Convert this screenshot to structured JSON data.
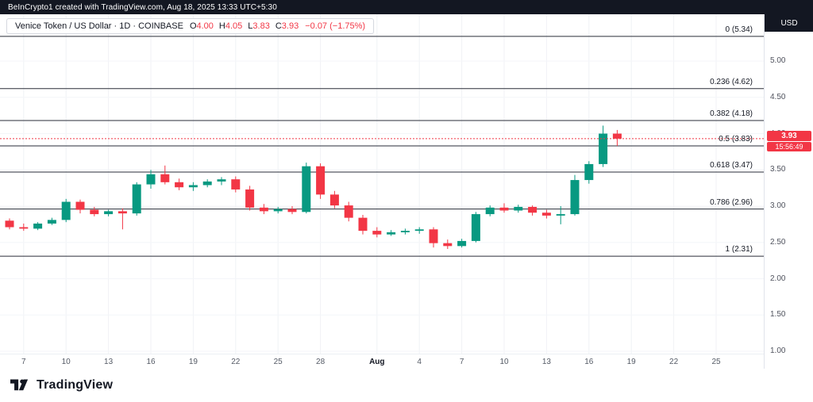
{
  "top_bar": {
    "title": "BeInCrypto1 created with TradingView.com, Aug 18, 2025 13:33 UTC+5:30",
    "currency": "USD"
  },
  "legend": {
    "title": "Venice Token / US Dollar · 1D · COINBASE",
    "ohlc": [
      {
        "label": "O",
        "value": "4.00"
      },
      {
        "label": "H",
        "value": "4.05"
      },
      {
        "label": "L",
        "value": "3.83"
      },
      {
        "label": "C",
        "value": "3.93"
      }
    ],
    "change": "−0.07 (−1.75%)"
  },
  "price_axis": {
    "last_price_badge": {
      "price": "3.93",
      "time": "15:56:49"
    }
  },
  "footer": {
    "brand": "TradingView"
  },
  "colors": {
    "up": "#089981",
    "down": "#f23645",
    "fib_line": "#2a2e39",
    "grid_v": "#f0f2f6",
    "grid_h": "#f4f6f9",
    "last_price_line": "#f23645",
    "topbar_bg": "#131722",
    "axis_text": "#50535e"
  },
  "chart_data": {
    "type": "candlestick",
    "title": "Venice Token / US Dollar, 1D, COINBASE",
    "symbol": "Venice Token / US Dollar",
    "interval": "1D",
    "exchange": "COINBASE",
    "ylim": [
      0.95,
      5.45
    ],
    "last_price": 3.93,
    "last_price_time": "15:56:49",
    "price_ticks": [
      {
        "label": "5.00",
        "value": 5.0
      },
      {
        "label": "4.50",
        "value": 4.5
      },
      {
        "label": "4.00",
        "value": 4.0
      },
      {
        "label": "3.50",
        "value": 3.5
      },
      {
        "label": "3.00",
        "value": 3.0
      },
      {
        "label": "2.50",
        "value": 2.5
      },
      {
        "label": "2.00",
        "value": 2.0
      },
      {
        "label": "1.50",
        "value": 1.5
      },
      {
        "label": "1.00",
        "value": 1.0
      }
    ],
    "time_ticks": [
      {
        "label": "7",
        "day": 1
      },
      {
        "label": "10",
        "day": 4
      },
      {
        "label": "13",
        "day": 7
      },
      {
        "label": "16",
        "day": 10
      },
      {
        "label": "19",
        "day": 13
      },
      {
        "label": "22",
        "day": 16
      },
      {
        "label": "25",
        "day": 19
      },
      {
        "label": "28",
        "day": 22
      },
      {
        "label": "Aug",
        "day": 26,
        "strong": true
      },
      {
        "label": "4",
        "day": 29
      },
      {
        "label": "7",
        "day": 32
      },
      {
        "label": "10",
        "day": 35
      },
      {
        "label": "13",
        "day": 38
      },
      {
        "label": "16",
        "day": 41
      },
      {
        "label": "19",
        "day": 44
      },
      {
        "label": "22",
        "day": 47
      },
      {
        "label": "25",
        "day": 50
      }
    ],
    "fib_levels": [
      {
        "label": "0 (5.34)",
        "ratio": 0,
        "price": 5.34
      },
      {
        "label": "0.236 (4.62)",
        "ratio": 0.236,
        "price": 4.62
      },
      {
        "label": "0.382 (4.18)",
        "ratio": 0.382,
        "price": 4.18
      },
      {
        "label": "0.5 (3.83)",
        "ratio": 0.5,
        "price": 3.83
      },
      {
        "label": "0.618 (3.47)",
        "ratio": 0.618,
        "price": 3.47
      },
      {
        "label": "0.786 (2.96)",
        "ratio": 0.786,
        "price": 2.96
      },
      {
        "label": "1 (2.31)",
        "ratio": 1,
        "price": 2.31
      }
    ],
    "candles": [
      {
        "d": "Jul 6",
        "o": 2.8,
        "h": 2.83,
        "l": 2.68,
        "c": 2.71
      },
      {
        "d": "Jul 7",
        "o": 2.71,
        "h": 2.76,
        "l": 2.66,
        "c": 2.69
      },
      {
        "d": "Jul 8",
        "o": 2.69,
        "h": 2.78,
        "l": 2.67,
        "c": 2.76
      },
      {
        "d": "Jul 9",
        "o": 2.76,
        "h": 2.84,
        "l": 2.74,
        "c": 2.81
      },
      {
        "d": "Jul 10",
        "o": 2.81,
        "h": 3.1,
        "l": 2.78,
        "c": 3.06
      },
      {
        "d": "Jul 11",
        "o": 3.06,
        "h": 3.09,
        "l": 2.9,
        "c": 2.95
      },
      {
        "d": "Jul 12",
        "o": 2.95,
        "h": 2.99,
        "l": 2.86,
        "c": 2.89
      },
      {
        "d": "Jul 13",
        "o": 2.89,
        "h": 2.95,
        "l": 2.86,
        "c": 2.93
      },
      {
        "d": "Jul 14",
        "o": 2.93,
        "h": 2.97,
        "l": 2.68,
        "c": 2.9
      },
      {
        "d": "Jul 15",
        "o": 2.9,
        "h": 3.33,
        "l": 2.87,
        "c": 3.3
      },
      {
        "d": "Jul 16",
        "o": 3.3,
        "h": 3.5,
        "l": 3.24,
        "c": 3.44
      },
      {
        "d": "Jul 17",
        "o": 3.44,
        "h": 3.56,
        "l": 3.3,
        "c": 3.33
      },
      {
        "d": "Jul 18",
        "o": 3.33,
        "h": 3.38,
        "l": 3.22,
        "c": 3.26
      },
      {
        "d": "Jul 19",
        "o": 3.26,
        "h": 3.33,
        "l": 3.21,
        "c": 3.29
      },
      {
        "d": "Jul 20",
        "o": 3.29,
        "h": 3.37,
        "l": 3.26,
        "c": 3.34
      },
      {
        "d": "Jul 21",
        "o": 3.34,
        "h": 3.4,
        "l": 3.29,
        "c": 3.37
      },
      {
        "d": "Jul 22",
        "o": 3.37,
        "h": 3.41,
        "l": 3.19,
        "c": 3.23
      },
      {
        "d": "Jul 23",
        "o": 3.23,
        "h": 3.28,
        "l": 2.94,
        "c": 2.98
      },
      {
        "d": "Jul 24",
        "o": 2.98,
        "h": 3.03,
        "l": 2.89,
        "c": 2.93
      },
      {
        "d": "Jul 25",
        "o": 2.93,
        "h": 2.99,
        "l": 2.9,
        "c": 2.96
      },
      {
        "d": "Jul 26",
        "o": 2.96,
        "h": 3.0,
        "l": 2.89,
        "c": 2.92
      },
      {
        "d": "Jul 27",
        "o": 2.92,
        "h": 3.6,
        "l": 2.9,
        "c": 3.55
      },
      {
        "d": "Jul 28",
        "o": 3.55,
        "h": 3.59,
        "l": 3.1,
        "c": 3.16
      },
      {
        "d": "Jul 29",
        "o": 3.16,
        "h": 3.21,
        "l": 2.97,
        "c": 3.01
      },
      {
        "d": "Jul 30",
        "o": 3.01,
        "h": 3.06,
        "l": 2.79,
        "c": 2.84
      },
      {
        "d": "Jul 31",
        "o": 2.84,
        "h": 2.88,
        "l": 2.61,
        "c": 2.66
      },
      {
        "d": "Aug 1",
        "o": 2.66,
        "h": 2.71,
        "l": 2.57,
        "c": 2.61
      },
      {
        "d": "Aug 2",
        "o": 2.61,
        "h": 2.67,
        "l": 2.59,
        "c": 2.64
      },
      {
        "d": "Aug 3",
        "o": 2.64,
        "h": 2.69,
        "l": 2.61,
        "c": 2.66
      },
      {
        "d": "Aug 4",
        "o": 2.66,
        "h": 2.71,
        "l": 2.62,
        "c": 2.68
      },
      {
        "d": "Aug 5",
        "o": 2.68,
        "h": 2.71,
        "l": 2.43,
        "c": 2.49
      },
      {
        "d": "Aug 6",
        "o": 2.49,
        "h": 2.54,
        "l": 2.41,
        "c": 2.45
      },
      {
        "d": "Aug 7",
        "o": 2.45,
        "h": 2.55,
        "l": 2.43,
        "c": 2.52
      },
      {
        "d": "Aug 8",
        "o": 2.52,
        "h": 2.92,
        "l": 2.5,
        "c": 2.89
      },
      {
        "d": "Aug 9",
        "o": 2.89,
        "h": 3.01,
        "l": 2.86,
        "c": 2.98
      },
      {
        "d": "Aug 10",
        "o": 2.98,
        "h": 3.04,
        "l": 2.91,
        "c": 2.94
      },
      {
        "d": "Aug 11",
        "o": 2.94,
        "h": 3.02,
        "l": 2.91,
        "c": 2.99
      },
      {
        "d": "Aug 12",
        "o": 2.99,
        "h": 3.01,
        "l": 2.87,
        "c": 2.91
      },
      {
        "d": "Aug 13",
        "o": 2.91,
        "h": 2.95,
        "l": 2.83,
        "c": 2.87
      },
      {
        "d": "Aug 14",
        "o": 2.87,
        "h": 3.0,
        "l": 2.75,
        "c": 2.89
      },
      {
        "d": "Aug 15",
        "o": 2.89,
        "h": 3.43,
        "l": 2.87,
        "c": 3.36
      },
      {
        "d": "Aug 16",
        "o": 3.36,
        "h": 3.62,
        "l": 3.31,
        "c": 3.58
      },
      {
        "d": "Aug 17",
        "o": 3.58,
        "h": 4.11,
        "l": 3.54,
        "c": 4.0
      },
      {
        "d": "Aug 18",
        "o": 4.0,
        "h": 4.05,
        "l": 3.83,
        "c": 3.93
      }
    ]
  }
}
